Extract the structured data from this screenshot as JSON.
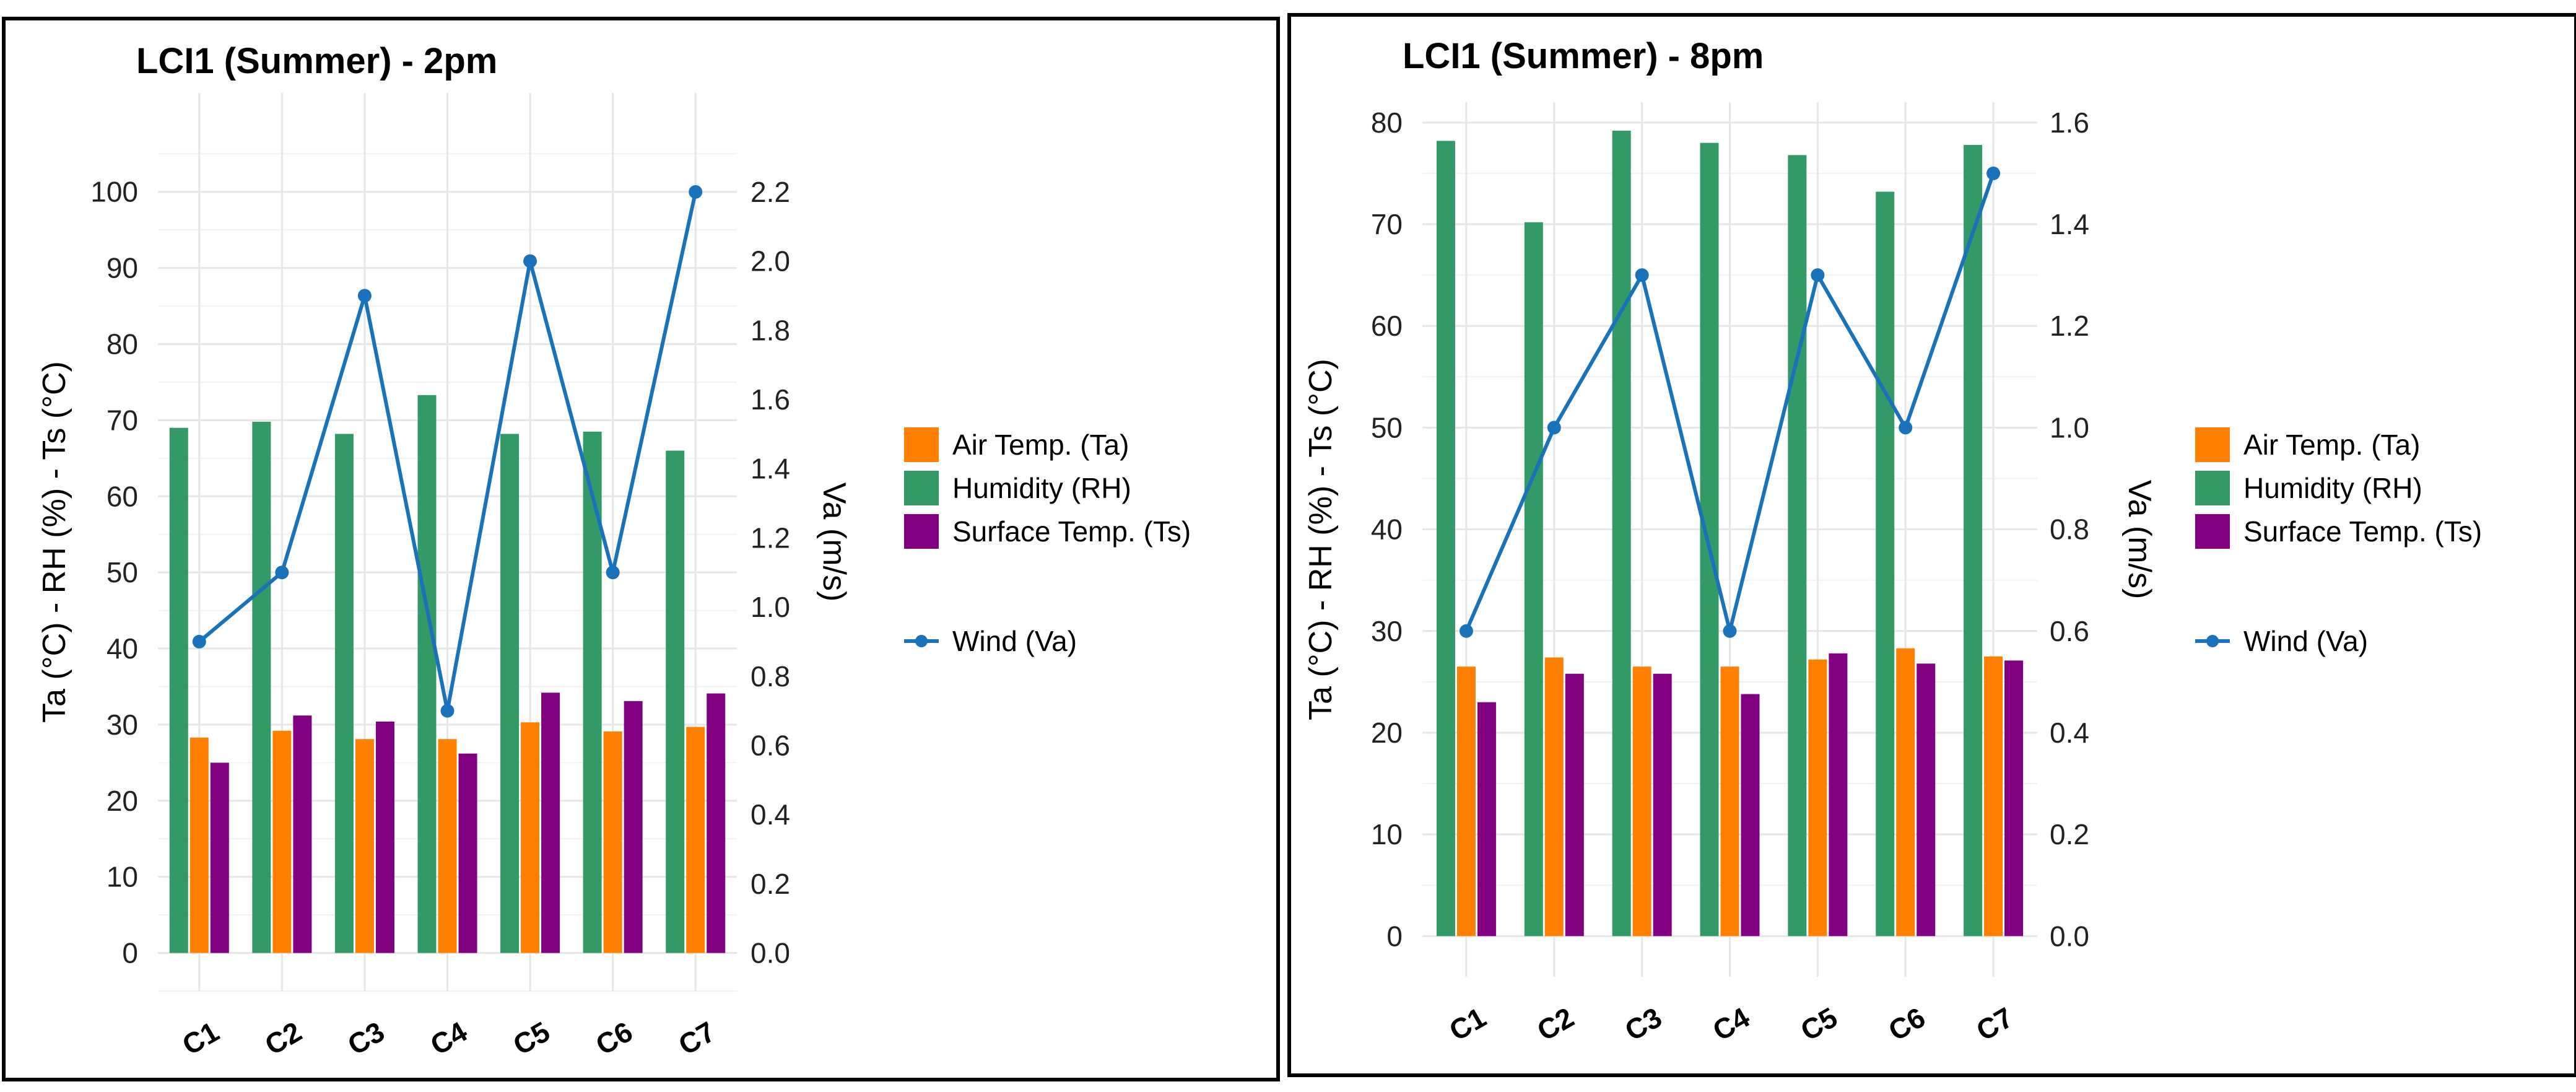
{
  "colors": {
    "ta": "#FF8000",
    "rh": "#339966",
    "ts": "#800080",
    "wind": "#1A73BA",
    "grid_major": "#E6E6E6",
    "grid_minor": "#F2F2F2",
    "frame": "#000000"
  },
  "chart_data": [
    {
      "type": "bar",
      "title": "LCI1 (Summer) - 2pm",
      "categories": [
        "C1",
        "C2",
        "C3",
        "C4",
        "C5",
        "C6",
        "C7"
      ],
      "ylabel": "Ta (°C) - RH (%) - Ts (°C)",
      "ylabel_right": "Va (m/s)",
      "ylim": [
        -5,
        113
      ],
      "y_ticks": [
        0,
        10,
        20,
        30,
        40,
        50,
        60,
        70,
        80,
        90,
        100
      ],
      "y_tick_labels": [
        "0",
        "10",
        "20",
        "30",
        "40",
        "50",
        "60",
        "70",
        "80",
        "90",
        "100"
      ],
      "y2_ticks": [
        0,
        0.2,
        0.4,
        0.6,
        0.8,
        1.0,
        1.2,
        1.4,
        1.6,
        1.8,
        2.0,
        2.2
      ],
      "y2_tick_labels": [
        "0.0",
        "0.2",
        "0.4",
        "0.6",
        "0.8",
        "1.0",
        "1.2",
        "1.4",
        "1.6",
        "1.8",
        "2.0",
        "2.2"
      ],
      "y2_scale": 45.45,
      "series": [
        {
          "name": "Humidity (RH)",
          "key": "rh",
          "values": [
            69,
            69.8,
            68.2,
            73.3,
            68.2,
            68.5,
            66
          ]
        },
        {
          "name": "Air Temp. (Ta)",
          "key": "ta",
          "values": [
            28.3,
            29.2,
            28.1,
            28.1,
            30.3,
            29.1,
            29.7
          ]
        },
        {
          "name": "Surface Temp. (Ts)",
          "key": "ts",
          "values": [
            25,
            31.2,
            30.4,
            26.2,
            34.2,
            33.1,
            34.1
          ]
        },
        {
          "name": "Wind (Va)",
          "key": "wind",
          "type": "line",
          "axis": "right",
          "values": [
            0.9,
            1.1,
            1.9,
            0.7,
            2.0,
            1.1,
            2.2
          ]
        }
      ],
      "legend": {
        "bars": [
          "Air Temp. (Ta)",
          "Humidity (RH)",
          "Surface Temp. (Ts)"
        ],
        "line": "Wind (Va)",
        "position": "right"
      }
    },
    {
      "type": "bar",
      "title": "LCI1 (Summer) - 8pm",
      "categories": [
        "C1",
        "C2",
        "C3",
        "C4",
        "C5",
        "C6",
        "C7"
      ],
      "ylabel": "Ta (°C) - RH (%) - Ts (°C)",
      "ylabel_right": "Va (m/s)",
      "ylim": [
        -4,
        82
      ],
      "y_ticks": [
        0,
        10,
        20,
        30,
        40,
        50,
        60,
        70,
        80
      ],
      "y_tick_labels": [
        "0",
        "10",
        "20",
        "30",
        "40",
        "50",
        "60",
        "70",
        "80"
      ],
      "y2_ticks": [
        0,
        0.2,
        0.4,
        0.6,
        0.8,
        1.0,
        1.2,
        1.4,
        1.6
      ],
      "y2_tick_labels": [
        "0.0",
        "0.2",
        "0.4",
        "0.6",
        "0.8",
        "1.0",
        "1.2",
        "1.4",
        "1.6"
      ],
      "y2_scale": 50,
      "series": [
        {
          "name": "Humidity (RH)",
          "key": "rh",
          "values": [
            78.2,
            70.2,
            79.2,
            78,
            76.8,
            73.2,
            77.8
          ]
        },
        {
          "name": "Air Temp. (Ta)",
          "key": "ta",
          "values": [
            26.5,
            27.4,
            26.5,
            26.5,
            27.2,
            28.3,
            27.5
          ]
        },
        {
          "name": "Surface Temp. (Ts)",
          "key": "ts",
          "values": [
            23,
            25.8,
            25.8,
            23.8,
            27.8,
            26.8,
            27.1
          ]
        },
        {
          "name": "Wind (Va)",
          "key": "wind",
          "type": "line",
          "axis": "right",
          "values": [
            0.6,
            1.0,
            1.3,
            0.6,
            1.3,
            1.0,
            1.5
          ]
        }
      ],
      "legend": {
        "bars": [
          "Air Temp. (Ta)",
          "Humidity (RH)",
          "Surface Temp. (Ts)"
        ],
        "line": "Wind (Va)",
        "position": "right"
      }
    }
  ]
}
